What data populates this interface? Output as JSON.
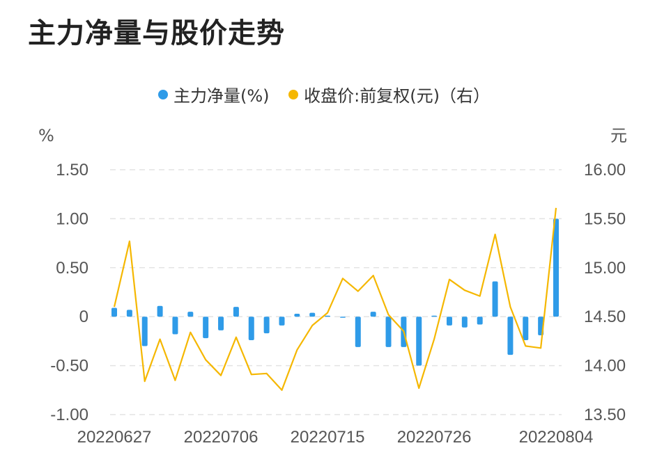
{
  "chart_data": {
    "type": "bar+line",
    "title": "主力净量与股价走势",
    "left_unit": "%",
    "right_unit": "元",
    "legend": {
      "placement": "top-center"
    },
    "grid": true,
    "left_axis": {
      "ylim": [
        -1.0,
        1.5
      ],
      "ticks": [
        "1.50",
        "1.00",
        "0.50",
        "0",
        "-0.50",
        "-1.00"
      ],
      "tick_values": [
        1.5,
        1.0,
        0.5,
        0,
        -0.5,
        -1.0
      ]
    },
    "right_axis": {
      "ylim": [
        13.5,
        16.0
      ],
      "ticks": [
        "16.00",
        "15.50",
        "15.00",
        "14.50",
        "14.00",
        "13.50"
      ],
      "tick_values": [
        16.0,
        15.5,
        15.0,
        14.5,
        14.0,
        13.5
      ]
    },
    "x_tick_labels": [
      "20220627",
      "20220706",
      "20220715",
      "20220726",
      "20220804"
    ],
    "x_tick_index": [
      0,
      7,
      14,
      21,
      29
    ],
    "series": [
      {
        "name": "主力净量(%)",
        "type": "bar",
        "axis": "left",
        "color": "#2f9be8",
        "values": [
          0.09,
          0.07,
          -0.3,
          0.11,
          -0.18,
          0.05,
          -0.22,
          -0.14,
          0.1,
          -0.24,
          -0.17,
          -0.09,
          0.03,
          0.04,
          0.01,
          -0.01,
          -0.31,
          0.05,
          -0.31,
          -0.31,
          -0.5,
          0.01,
          -0.09,
          -0.11,
          -0.08,
          0.36,
          -0.39,
          -0.24,
          -0.19,
          1.0
        ]
      },
      {
        "name": "收盘价:前复权(元)（右）",
        "type": "line",
        "axis": "right",
        "color": "#f5b700",
        "values": [
          14.6,
          15.27,
          13.84,
          14.27,
          13.85,
          14.34,
          14.06,
          13.9,
          14.29,
          13.91,
          13.92,
          13.75,
          14.16,
          14.41,
          14.54,
          14.89,
          14.76,
          14.92,
          14.52,
          14.35,
          13.77,
          14.27,
          14.88,
          14.77,
          14.71,
          15.34,
          14.6,
          14.2,
          14.18,
          15.61
        ]
      }
    ]
  }
}
